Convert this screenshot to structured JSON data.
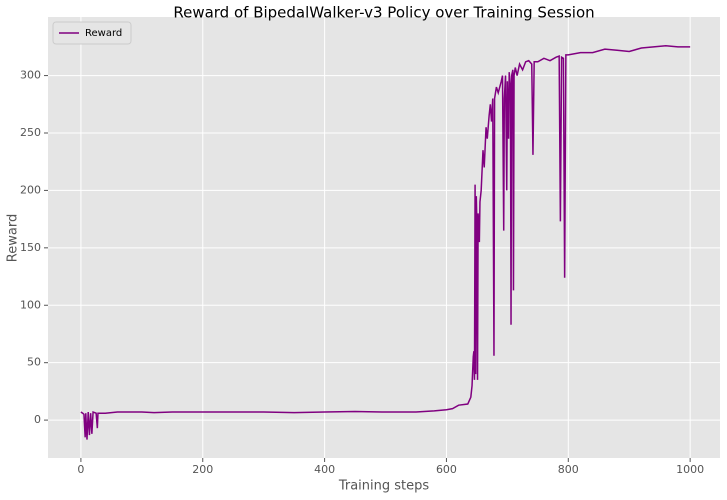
{
  "chart_data": {
    "type": "line",
    "title": "Reward of BipedalWalker-v3 Policy over Training Session",
    "x_label": "Training steps",
    "y_label": "Reward",
    "x": [
      0,
      3,
      5,
      7,
      8,
      10,
      12,
      14,
      16,
      18,
      20,
      25,
      27,
      28,
      40,
      60,
      100,
      120,
      150,
      200,
      250,
      300,
      350,
      400,
      450,
      500,
      550,
      580,
      600,
      610,
      620,
      635,
      640,
      642,
      644,
      645,
      646,
      647,
      648,
      649,
      650,
      651,
      652,
      654,
      655,
      657,
      660,
      662,
      665,
      667,
      670,
      672,
      674,
      676,
      678,
      679,
      682,
      685,
      690,
      692,
      694,
      695,
      697,
      699,
      700,
      702,
      703,
      705,
      706,
      707,
      709,
      710,
      711,
      713,
      716,
      720,
      725,
      730,
      735,
      740,
      742,
      744,
      750,
      760,
      770,
      780,
      785,
      787,
      789,
      792,
      794,
      796,
      800,
      820,
      840,
      860,
      880,
      900,
      920,
      940,
      960,
      980,
      1000
    ],
    "series": [
      {
        "name": "Reward",
        "color": "#800080",
        "values": [
          7,
          6,
          5,
          -15,
          6,
          -17,
          7,
          -13,
          6,
          -12,
          7,
          6,
          -7,
          6,
          6,
          7,
          7,
          6.5,
          7,
          7,
          7,
          7,
          6.5,
          7,
          7.5,
          7,
          7,
          8,
          9,
          10,
          13,
          14,
          20,
          30,
          55,
          60,
          35,
          205,
          40,
          195,
          170,
          35,
          180,
          155,
          190,
          200,
          235,
          220,
          255,
          245,
          265,
          275,
          260,
          280,
          56,
          280,
          290,
          285,
          295,
          300,
          165,
          280,
          300,
          200,
          295,
          245,
          303,
          290,
          83,
          300,
          305,
          113,
          300,
          307,
          300,
          310,
          305,
          312,
          313,
          310,
          231,
          312,
          312,
          315,
          313,
          316,
          317,
          173,
          316,
          315,
          124,
          318,
          318,
          320,
          320,
          323,
          322,
          321,
          324,
          325,
          326,
          325,
          325
        ]
      }
    ],
    "xlim": [
      -54,
      1049
    ],
    "ylim": [
      -33,
      351
    ],
    "xticks": [
      0,
      200,
      400,
      600,
      800,
      1000
    ],
    "yticks": [
      0,
      50,
      100,
      150,
      200,
      250,
      300
    ],
    "grid": true,
    "legend": "upper-left"
  }
}
